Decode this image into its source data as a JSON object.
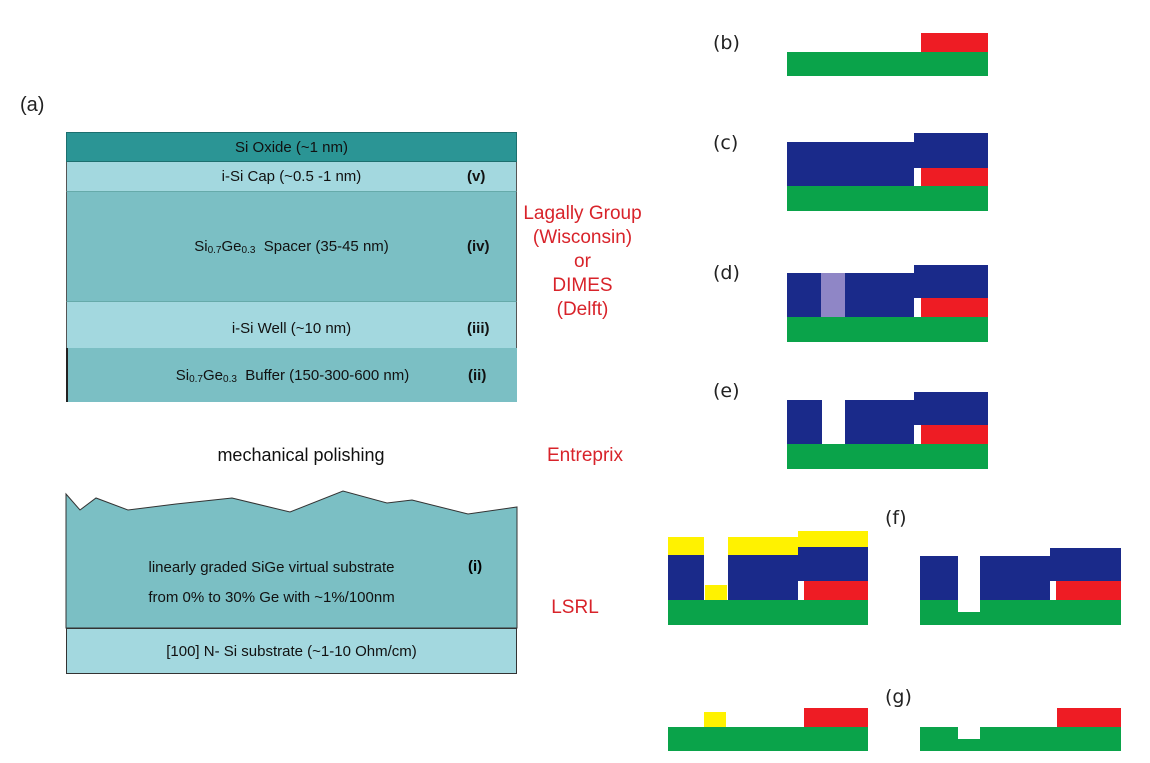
{
  "panel_a_label": "(a)",
  "layers": {
    "oxide": "Si Oxide (~1 nm)",
    "cap": "i-Si Cap (~0.5 -1 nm)",
    "cap_num": "(v)",
    "spacer_pre": "Si",
    "spacer_sub1": "0.7",
    "spacer_mid": "Ge",
    "spacer_sub2": "0.3",
    "spacer_post": "  Spacer (35-45 nm)",
    "spacer_num": "(iv)",
    "well": "i-Si Well (~10 nm)",
    "well_num": "(iii)",
    "buffer_pre": "Si",
    "buffer_sub1": "0.7",
    "buffer_mid": "Ge",
    "buffer_sub2": "0.3",
    "buffer_post": "  Buffer (150-300-600 nm)",
    "buffer_num": "(ii)",
    "polishing": "mechanical polishing",
    "graded_line1": "linearly graded SiGe virtual substrate",
    "graded_line2": "from 0% to 30% Ge with ~1%/100nm",
    "graded_num": "(i)",
    "substrate": "[100] N- Si substrate (~1-10 Ohm/cm)"
  },
  "sources": {
    "lagally_1": "Lagally Group",
    "lagally_2": "(Wisconsin)",
    "or": "or",
    "dimes_1": "DIMES",
    "dimes_2": "(Delft)",
    "entreprix": "Entreprix",
    "lsrl": "LSRL"
  },
  "panel_labels": {
    "b": "(b)",
    "c": "(c)",
    "d": "(d)",
    "e": "(e)",
    "f": "(f)",
    "g": "(g)"
  },
  "colors": {
    "oxide": "#2b9595",
    "cap": "#a3d8df",
    "spacer": "#7bbfc4",
    "well": "#a3d8df",
    "buffer": "#7bbfc4",
    "substrate": "#a3d8df",
    "green": "#0aa34a",
    "red": "#ee1c24",
    "blue": "#1a2a8a",
    "purple": "#8f86c6",
    "yellow": "#fff200",
    "source_text": "#d8232a"
  }
}
